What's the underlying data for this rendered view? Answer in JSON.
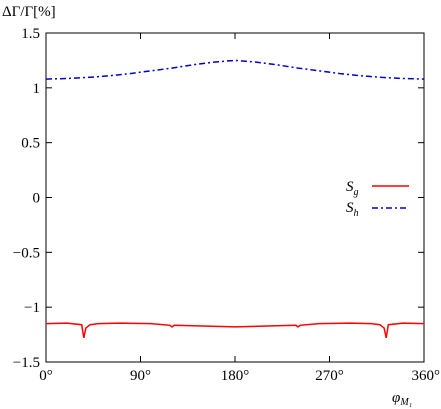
{
  "chart_data": {
    "type": "line",
    "ylabel": "ΔΓ/Γ[%]",
    "xlabel_main": "φ",
    "xlabel_sub": "M₁",
    "xlim": [
      0,
      360
    ],
    "ylim": [
      -1.5,
      1.5
    ],
    "x_ticks": [
      0,
      90,
      180,
      270,
      360
    ],
    "x_tick_labels": [
      "0°",
      "90°",
      "180°",
      "270°",
      "360°"
    ],
    "y_ticks": [
      1.5,
      1,
      0.5,
      0,
      -0.5,
      -1,
      -1.5
    ],
    "y_tick_labels": [
      "1.5",
      "1",
      "0.5",
      "0",
      "−0.5",
      "−1",
      "−1.5"
    ],
    "legend_position": "right",
    "series": [
      {
        "name_main": "S",
        "name_sub": "g",
        "color": "#ff0000",
        "style": "solid",
        "x": [
          0,
          20,
          34,
          36,
          38,
          42,
          50,
          70,
          100,
          118,
          120,
          122,
          140,
          180,
          220,
          238,
          240,
          242,
          260,
          290,
          310,
          318,
          322,
          324,
          326,
          340,
          360
        ],
        "y": [
          -1.15,
          -1.145,
          -1.16,
          -1.28,
          -1.19,
          -1.16,
          -1.15,
          -1.145,
          -1.15,
          -1.165,
          -1.18,
          -1.165,
          -1.17,
          -1.18,
          -1.17,
          -1.165,
          -1.18,
          -1.165,
          -1.15,
          -1.145,
          -1.15,
          -1.16,
          -1.19,
          -1.28,
          -1.16,
          -1.145,
          -1.15
        ]
      },
      {
        "name_main": "S",
        "name_sub": "h",
        "color": "#0000cc",
        "style": "dashdot",
        "x": [
          0,
          20,
          40,
          60,
          80,
          100,
          120,
          140,
          160,
          180,
          200,
          220,
          240,
          260,
          280,
          300,
          320,
          340,
          360
        ],
        "y": [
          1.08,
          1.085,
          1.095,
          1.11,
          1.13,
          1.155,
          1.18,
          1.21,
          1.235,
          1.25,
          1.235,
          1.21,
          1.18,
          1.155,
          1.13,
          1.11,
          1.095,
          1.085,
          1.08
        ]
      }
    ]
  }
}
